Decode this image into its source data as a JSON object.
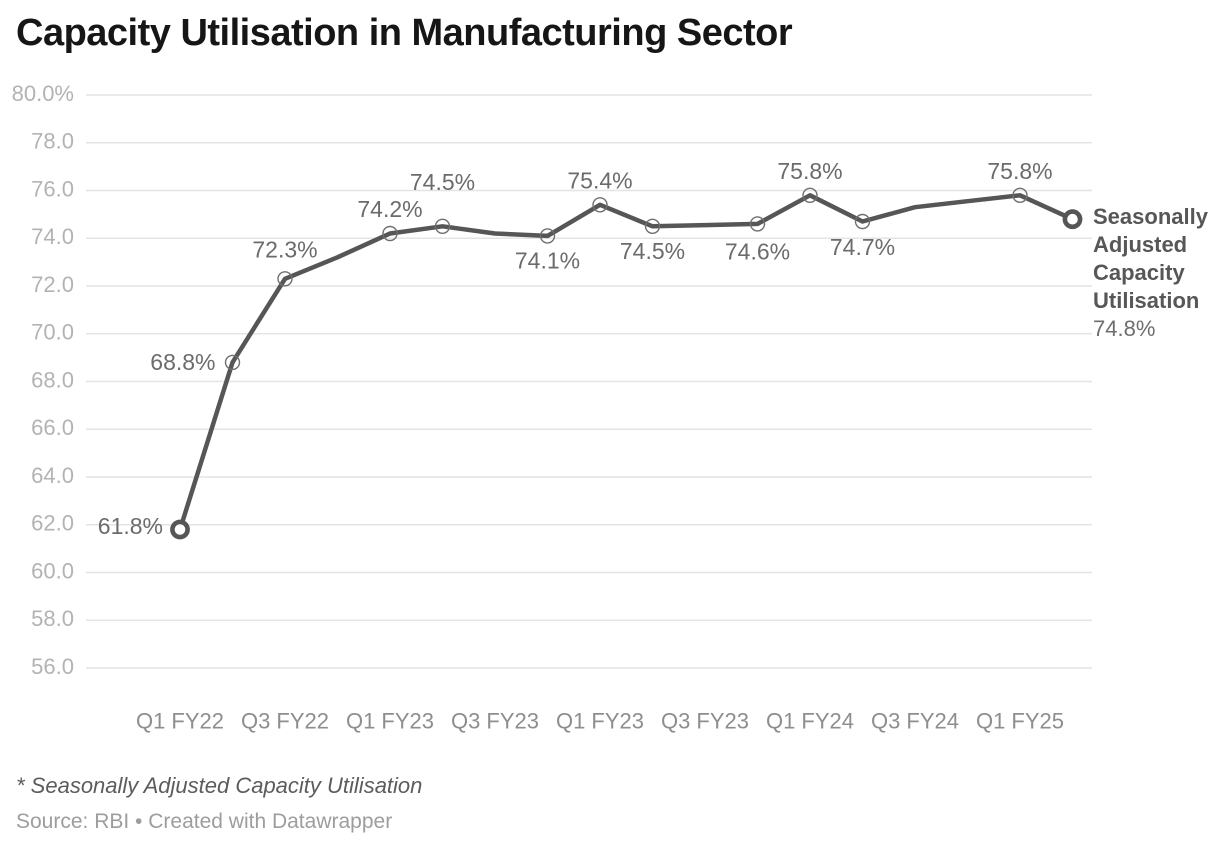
{
  "title": "Capacity Utilisation in Manufacturing Sector",
  "footer": {
    "footnote": "* Seasonally Adjusted Capacity Utilisation",
    "source": "Source: RBI • Created with Datawrapper"
  },
  "colors": {
    "background": "#ffffff",
    "title": "#161616",
    "line": "#565656",
    "marker_small": "#6f6f6f",
    "marker_large": "#565656",
    "data_label": "#6b6b6b",
    "grid": "#e4e4e4",
    "y_label": "#b3b3b3",
    "x_label": "#8e8e8e",
    "legend_name": "#575757",
    "legend_value": "#6e6e6e",
    "footnote": "#5c5c5c",
    "source": "#9d9d9d"
  },
  "chart_data": {
    "type": "line",
    "title": "Capacity Utilisation in Manufacturing Sector",
    "xlabel": "",
    "ylabel": "",
    "ylim": [
      56,
      80
    ],
    "grid": "horizontal",
    "legend_position": "right-of-last-point",
    "series_name": "Seasonally Adjusted Capacity Utilisation",
    "end_value_label": "74.8%",
    "y_ticks": [
      {
        "value": 80,
        "label": "80.0%"
      },
      {
        "value": 78,
        "label": "78.0"
      },
      {
        "value": 76,
        "label": "76.0"
      },
      {
        "value": 74,
        "label": "74.0"
      },
      {
        "value": 72,
        "label": "72.0"
      },
      {
        "value": 70,
        "label": "70.0"
      },
      {
        "value": 68,
        "label": "68.0"
      },
      {
        "value": 66,
        "label": "66.0"
      },
      {
        "value": 64,
        "label": "64.0"
      },
      {
        "value": 62,
        "label": "62.0"
      },
      {
        "value": 60,
        "label": "60.0"
      },
      {
        "value": 58,
        "label": "58.0"
      },
      {
        "value": 56,
        "label": "56.0"
      }
    ],
    "x_tick_labels": [
      "Q1 FY22",
      "Q3 FY22",
      "Q1 FY23",
      "Q3 FY23",
      "Q1 FY23",
      "Q3 FY23",
      "Q1 FY24",
      "Q3 FY24",
      "Q1 FY25"
    ],
    "x_tick_indices": [
      0,
      2,
      4,
      6,
      8,
      10,
      12,
      14,
      16
    ],
    "points": [
      {
        "value": 61.8,
        "label": "61.8%",
        "label_pos": "left",
        "label_offset": -3,
        "marker": "ring-large"
      },
      {
        "value": 68.8,
        "label": "68.8%",
        "label_pos": "left",
        "label_offset": 0,
        "marker": "ring-small"
      },
      {
        "value": 72.3,
        "label": "72.3%",
        "label_pos": "above",
        "label_offset": -29,
        "marker": "ring-small"
      },
      {
        "value": 73.2,
        "estimated": true
      },
      {
        "value": 74.2,
        "label": "74.2%",
        "label_pos": "above",
        "label_offset": -24,
        "marker": "ring-small"
      },
      {
        "value": 74.5,
        "label": "74.5%",
        "label_pos": "above",
        "label_offset": -44,
        "marker": "ring-small"
      },
      {
        "value": 74.2,
        "estimated": true
      },
      {
        "value": 74.1,
        "label": "74.1%",
        "label_pos": "below",
        "label_offset": 25,
        "marker": "ring-small"
      },
      {
        "value": 75.4,
        "label": "75.4%",
        "label_pos": "above",
        "label_offset": -24,
        "marker": "ring-small"
      },
      {
        "value": 74.5,
        "label": "74.5%",
        "label_pos": "below",
        "label_offset": 25,
        "marker": "ring-small"
      },
      {
        "value": 74.55,
        "estimated": true
      },
      {
        "value": 74.6,
        "label": "74.6%",
        "label_pos": "below",
        "label_offset": 28,
        "marker": "ring-small"
      },
      {
        "value": 75.8,
        "label": "75.8%",
        "label_pos": "above",
        "label_offset": -24,
        "marker": "ring-small"
      },
      {
        "value": 74.7,
        "label": "74.7%",
        "label_pos": "below",
        "label_offset": 26,
        "marker": "ring-small"
      },
      {
        "value": 75.3,
        "estimated": true
      },
      {
        "value": 75.55,
        "estimated": true
      },
      {
        "value": 75.8,
        "label": "75.8%",
        "label_pos": "above",
        "label_offset": -24,
        "marker": "ring-small"
      },
      {
        "value": 74.8,
        "marker": "ring-large"
      }
    ]
  }
}
